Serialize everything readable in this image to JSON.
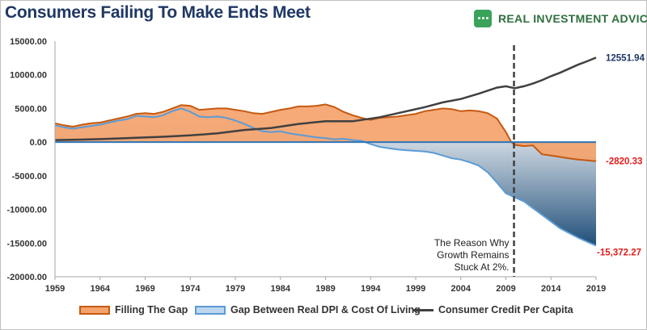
{
  "header": {
    "title": "Consumers Failing To Make Ends Meet",
    "brand_text": "REAL INVESTMENT ADVICE",
    "brand_icon": "bull-icon"
  },
  "colors": {
    "fill_orange": "#f4a36c",
    "stroke_orange": "#c55a11",
    "stroke_blue": "#5b9bd5",
    "fill_blue_dark": "#1f4e79",
    "credit_line": "#404040",
    "negative_label": "#e31b1b",
    "positive_label": "#1f3864"
  },
  "annotation": {
    "lines": [
      "The Reason Why",
      "Growth Remains",
      "Stuck At 2%."
    ],
    "marker_year": 2009.9
  },
  "end_labels": {
    "credit": "12551.94",
    "gap": "-2820.33",
    "dpi": "-15,372.27"
  },
  "chart_data": {
    "type": "area",
    "title": "Consumers Failing To Make Ends Meet",
    "xlabel": "",
    "ylabel": "",
    "xlim": [
      1959,
      2019
    ],
    "ylim": [
      -20000,
      15000
    ],
    "y_ticks": [
      "15000.00",
      "10000.00",
      "5000.00",
      "0.00",
      "-5000.00",
      "-10000.00",
      "-15000.00",
      "-20000.00"
    ],
    "x_ticks": [
      "1959",
      "1964",
      "1969",
      "1974",
      "1979",
      "1984",
      "1989",
      "1994",
      "1999",
      "2004",
      "2009",
      "2014",
      "2019"
    ],
    "grid": false,
    "legend_position": "bottom",
    "series": [
      {
        "name": "Filling The Gap",
        "style": "area",
        "points": [
          [
            1959,
            2800
          ],
          [
            1960,
            2500
          ],
          [
            1961,
            2300
          ],
          [
            1962,
            2600
          ],
          [
            1963,
            2800
          ],
          [
            1964,
            2900
          ],
          [
            1965,
            3200
          ],
          [
            1966,
            3500
          ],
          [
            1967,
            3800
          ],
          [
            1968,
            4200
          ],
          [
            1969,
            4300
          ],
          [
            1970,
            4200
          ],
          [
            1971,
            4500
          ],
          [
            1972,
            5000
          ],
          [
            1973,
            5500
          ],
          [
            1974,
            5400
          ],
          [
            1975,
            4800
          ],
          [
            1976,
            4900
          ],
          [
            1977,
            5000
          ],
          [
            1978,
            5000
          ],
          [
            1979,
            4800
          ],
          [
            1980,
            4600
          ],
          [
            1981,
            4300
          ],
          [
            1982,
            4200
          ],
          [
            1983,
            4500
          ],
          [
            1984,
            4800
          ],
          [
            1985,
            5000
          ],
          [
            1986,
            5300
          ],
          [
            1987,
            5300
          ],
          [
            1988,
            5400
          ],
          [
            1989,
            5600
          ],
          [
            1990,
            5200
          ],
          [
            1991,
            4500
          ],
          [
            1992,
            4000
          ],
          [
            1993,
            3600
          ],
          [
            1994,
            3300
          ],
          [
            1995,
            3600
          ],
          [
            1996,
            3700
          ],
          [
            1997,
            3800
          ],
          [
            1998,
            4000
          ],
          [
            1999,
            4200
          ],
          [
            2000,
            4600
          ],
          [
            2001,
            4800
          ],
          [
            2002,
            5000
          ],
          [
            2003,
            4900
          ],
          [
            2004,
            4600
          ],
          [
            2005,
            4700
          ],
          [
            2006,
            4600
          ],
          [
            2007,
            4300
          ],
          [
            2008,
            3500
          ],
          [
            2009,
            1500
          ],
          [
            2009.6,
            0
          ],
          [
            2010,
            -400
          ],
          [
            2011,
            -600
          ],
          [
            2012,
            -500
          ],
          [
            2013,
            -1800
          ],
          [
            2014,
            -2000
          ],
          [
            2015,
            -2200
          ],
          [
            2016,
            -2400
          ],
          [
            2017,
            -2600
          ],
          [
            2018,
            -2700
          ],
          [
            2019,
            -2820.33
          ]
        ]
      },
      {
        "name": "Gap Between Real DPI & Cost Of Living",
        "style": "area",
        "points": [
          [
            1959,
            2500
          ],
          [
            1960,
            2200
          ],
          [
            1961,
            2000
          ],
          [
            1962,
            2200
          ],
          [
            1963,
            2400
          ],
          [
            1964,
            2600
          ],
          [
            1965,
            2900
          ],
          [
            1966,
            3200
          ],
          [
            1967,
            3400
          ],
          [
            1968,
            3900
          ],
          [
            1969,
            3800
          ],
          [
            1970,
            3700
          ],
          [
            1971,
            4000
          ],
          [
            1972,
            4600
          ],
          [
            1973,
            5000
          ],
          [
            1974,
            4500
          ],
          [
            1975,
            3800
          ],
          [
            1976,
            3700
          ],
          [
            1977,
            3800
          ],
          [
            1978,
            3600
          ],
          [
            1979,
            3200
          ],
          [
            1980,
            2700
          ],
          [
            1981,
            2100
          ],
          [
            1982,
            1600
          ],
          [
            1983,
            1500
          ],
          [
            1984,
            1600
          ],
          [
            1985,
            1300
          ],
          [
            1986,
            1100
          ],
          [
            1987,
            900
          ],
          [
            1988,
            700
          ],
          [
            1989,
            600
          ],
          [
            1990,
            400
          ],
          [
            1991,
            500
          ],
          [
            1992,
            300
          ],
          [
            1993,
            200
          ],
          [
            1994,
            -300
          ],
          [
            1995,
            -700
          ],
          [
            1996,
            -900
          ],
          [
            1997,
            -1100
          ],
          [
            1998,
            -1200
          ],
          [
            1999,
            -1300
          ],
          [
            2000,
            -1400
          ],
          [
            2001,
            -1600
          ],
          [
            2002,
            -2000
          ],
          [
            2003,
            -2400
          ],
          [
            2004,
            -2600
          ],
          [
            2005,
            -3000
          ],
          [
            2006,
            -3500
          ],
          [
            2007,
            -4500
          ],
          [
            2008,
            -6000
          ],
          [
            2009,
            -7600
          ],
          [
            2010,
            -8200
          ],
          [
            2011,
            -8800
          ],
          [
            2012,
            -9800
          ],
          [
            2013,
            -10800
          ],
          [
            2014,
            -11800
          ],
          [
            2015,
            -12800
          ],
          [
            2016,
            -13500
          ],
          [
            2017,
            -14200
          ],
          [
            2018,
            -14800
          ],
          [
            2019,
            -15372.27
          ]
        ]
      },
      {
        "name": "Consumer Credit Per Capita",
        "style": "line",
        "points": [
          [
            1959,
            300
          ],
          [
            1962,
            380
          ],
          [
            1965,
            500
          ],
          [
            1968,
            650
          ],
          [
            1971,
            800
          ],
          [
            1974,
            1000
          ],
          [
            1977,
            1300
          ],
          [
            1980,
            1800
          ],
          [
            1983,
            2100
          ],
          [
            1986,
            2700
          ],
          [
            1989,
            3100
          ],
          [
            1992,
            3100
          ],
          [
            1995,
            3700
          ],
          [
            1998,
            4600
          ],
          [
            2000,
            5200
          ],
          [
            2002,
            5900
          ],
          [
            2004,
            6400
          ],
          [
            2006,
            7200
          ],
          [
            2008,
            8100
          ],
          [
            2009,
            8300
          ],
          [
            2010,
            8000
          ],
          [
            2011,
            8300
          ],
          [
            2012,
            8700
          ],
          [
            2013,
            9200
          ],
          [
            2014,
            9800
          ],
          [
            2015,
            10300
          ],
          [
            2016,
            10900
          ],
          [
            2017,
            11500
          ],
          [
            2018,
            12000
          ],
          [
            2019,
            12551.94
          ]
        ]
      }
    ]
  }
}
